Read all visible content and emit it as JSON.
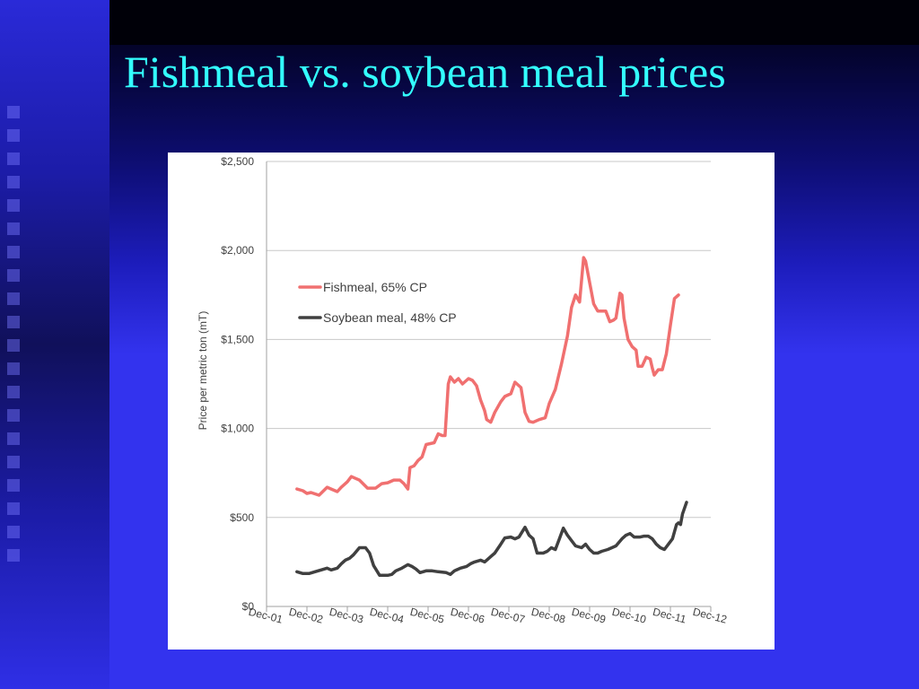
{
  "title": "Fishmeal vs. soybean meal prices",
  "colors": {
    "fishmeal": "#f07070",
    "soybean": "#404040",
    "title": "#33ffff"
  },
  "chart_data": {
    "type": "line",
    "title": "",
    "xlabel": "",
    "ylabel": "Price per metric ton (mT)",
    "ylim": [
      0,
      2500
    ],
    "xlim": [
      0,
      11
    ],
    "grid": true,
    "legend_position": "top-left",
    "y_ticks": [
      {
        "value": 0,
        "label": "$0"
      },
      {
        "value": 500,
        "label": "$500"
      },
      {
        "value": 1000,
        "label": "$1,000"
      },
      {
        "value": 1500,
        "label": "$1,500"
      },
      {
        "value": 2000,
        "label": "$2,000"
      },
      {
        "value": 2500,
        "label": "$2,500"
      }
    ],
    "x_ticks": [
      "Dec-01",
      "Dec-02",
      "Dec-03",
      "Dec-04",
      "Dec-05",
      "Dec-06",
      "Dec-07",
      "Dec-08",
      "Dec-09",
      "Dec-10",
      "Dec-11",
      "Dec-12"
    ],
    "series": [
      {
        "name": "Fishmeal, 65% CP",
        "points": [
          [
            0.75,
            660
          ],
          [
            0.9,
            650
          ],
          [
            1.0,
            635
          ],
          [
            1.1,
            640
          ],
          [
            1.3,
            625
          ],
          [
            1.5,
            670
          ],
          [
            1.6,
            660
          ],
          [
            1.75,
            645
          ],
          [
            1.85,
            670
          ],
          [
            2.0,
            700
          ],
          [
            2.1,
            730
          ],
          [
            2.2,
            720
          ],
          [
            2.3,
            710
          ],
          [
            2.5,
            665
          ],
          [
            2.7,
            665
          ],
          [
            2.85,
            690
          ],
          [
            3.0,
            695
          ],
          [
            3.15,
            710
          ],
          [
            3.3,
            710
          ],
          [
            3.4,
            690
          ],
          [
            3.5,
            660
          ],
          [
            3.55,
            780
          ],
          [
            3.65,
            790
          ],
          [
            3.75,
            820
          ],
          [
            3.85,
            840
          ],
          [
            3.95,
            910
          ],
          [
            4.05,
            915
          ],
          [
            4.15,
            920
          ],
          [
            4.25,
            970
          ],
          [
            4.35,
            960
          ],
          [
            4.42,
            960
          ],
          [
            4.5,
            1250
          ],
          [
            4.55,
            1290
          ],
          [
            4.65,
            1260
          ],
          [
            4.75,
            1280
          ],
          [
            4.85,
            1250
          ],
          [
            5.0,
            1280
          ],
          [
            5.1,
            1270
          ],
          [
            5.2,
            1240
          ],
          [
            5.3,
            1160
          ],
          [
            5.4,
            1100
          ],
          [
            5.45,
            1050
          ],
          [
            5.55,
            1035
          ],
          [
            5.65,
            1090
          ],
          [
            5.8,
            1150
          ],
          [
            5.9,
            1180
          ],
          [
            6.05,
            1195
          ],
          [
            6.15,
            1260
          ],
          [
            6.25,
            1240
          ],
          [
            6.3,
            1230
          ],
          [
            6.4,
            1090
          ],
          [
            6.5,
            1040
          ],
          [
            6.6,
            1035
          ],
          [
            6.75,
            1050
          ],
          [
            6.9,
            1060
          ],
          [
            7.0,
            1140
          ],
          [
            7.15,
            1220
          ],
          [
            7.3,
            1360
          ],
          [
            7.45,
            1520
          ],
          [
            7.55,
            1680
          ],
          [
            7.65,
            1750
          ],
          [
            7.75,
            1710
          ],
          [
            7.85,
            1960
          ],
          [
            7.9,
            1940
          ],
          [
            8.0,
            1820
          ],
          [
            8.1,
            1700
          ],
          [
            8.2,
            1660
          ],
          [
            8.3,
            1660
          ],
          [
            8.4,
            1660
          ],
          [
            8.5,
            1600
          ],
          [
            8.6,
            1610
          ],
          [
            8.65,
            1620
          ],
          [
            8.75,
            1760
          ],
          [
            8.8,
            1750
          ],
          [
            8.85,
            1620
          ],
          [
            8.95,
            1500
          ],
          [
            9.05,
            1460
          ],
          [
            9.15,
            1440
          ],
          [
            9.2,
            1350
          ],
          [
            9.3,
            1350
          ],
          [
            9.4,
            1400
          ],
          [
            9.5,
            1390
          ],
          [
            9.55,
            1340
          ],
          [
            9.6,
            1300
          ],
          [
            9.7,
            1330
          ],
          [
            9.8,
            1330
          ],
          [
            9.9,
            1420
          ],
          [
            10.0,
            1580
          ],
          [
            10.1,
            1730
          ],
          [
            10.2,
            1750
          ]
        ]
      },
      {
        "name": "Soybean meal, 48% CP",
        "points": [
          [
            0.75,
            195
          ],
          [
            0.9,
            185
          ],
          [
            1.05,
            185
          ],
          [
            1.2,
            195
          ],
          [
            1.35,
            205
          ],
          [
            1.5,
            215
          ],
          [
            1.6,
            205
          ],
          [
            1.75,
            215
          ],
          [
            1.85,
            240
          ],
          [
            1.95,
            260
          ],
          [
            2.05,
            270
          ],
          [
            2.15,
            290
          ],
          [
            2.3,
            330
          ],
          [
            2.45,
            330
          ],
          [
            2.55,
            300
          ],
          [
            2.65,
            230
          ],
          [
            2.8,
            175
          ],
          [
            3.0,
            175
          ],
          [
            3.1,
            180
          ],
          [
            3.2,
            200
          ],
          [
            3.35,
            215
          ],
          [
            3.5,
            235
          ],
          [
            3.6,
            225
          ],
          [
            3.7,
            210
          ],
          [
            3.8,
            190
          ],
          [
            3.95,
            200
          ],
          [
            4.1,
            200
          ],
          [
            4.25,
            195
          ],
          [
            4.45,
            190
          ],
          [
            4.55,
            180
          ],
          [
            4.65,
            200
          ],
          [
            4.8,
            215
          ],
          [
            4.95,
            225
          ],
          [
            5.05,
            240
          ],
          [
            5.15,
            250
          ],
          [
            5.3,
            260
          ],
          [
            5.4,
            250
          ],
          [
            5.55,
            280
          ],
          [
            5.65,
            300
          ],
          [
            5.8,
            350
          ],
          [
            5.9,
            385
          ],
          [
            6.05,
            390
          ],
          [
            6.15,
            380
          ],
          [
            6.25,
            390
          ],
          [
            6.4,
            445
          ],
          [
            6.5,
            400
          ],
          [
            6.6,
            380
          ],
          [
            6.7,
            300
          ],
          [
            6.85,
            300
          ],
          [
            6.95,
            310
          ],
          [
            7.05,
            330
          ],
          [
            7.15,
            320
          ],
          [
            7.25,
            380
          ],
          [
            7.35,
            440
          ],
          [
            7.45,
            400
          ],
          [
            7.55,
            370
          ],
          [
            7.65,
            340
          ],
          [
            7.8,
            330
          ],
          [
            7.9,
            350
          ],
          [
            8.0,
            320
          ],
          [
            8.1,
            300
          ],
          [
            8.2,
            300
          ],
          [
            8.3,
            310
          ],
          [
            8.45,
            320
          ],
          [
            8.55,
            330
          ],
          [
            8.65,
            340
          ],
          [
            8.8,
            380
          ],
          [
            8.9,
            400
          ],
          [
            9.0,
            410
          ],
          [
            9.1,
            390
          ],
          [
            9.25,
            390
          ],
          [
            9.35,
            395
          ],
          [
            9.45,
            395
          ],
          [
            9.55,
            380
          ],
          [
            9.65,
            350
          ],
          [
            9.75,
            330
          ],
          [
            9.85,
            320
          ],
          [
            9.95,
            350
          ],
          [
            10.05,
            380
          ],
          [
            10.15,
            460
          ],
          [
            10.2,
            470
          ],
          [
            10.25,
            460
          ],
          [
            10.3,
            520
          ],
          [
            10.4,
            585
          ]
        ]
      }
    ]
  }
}
